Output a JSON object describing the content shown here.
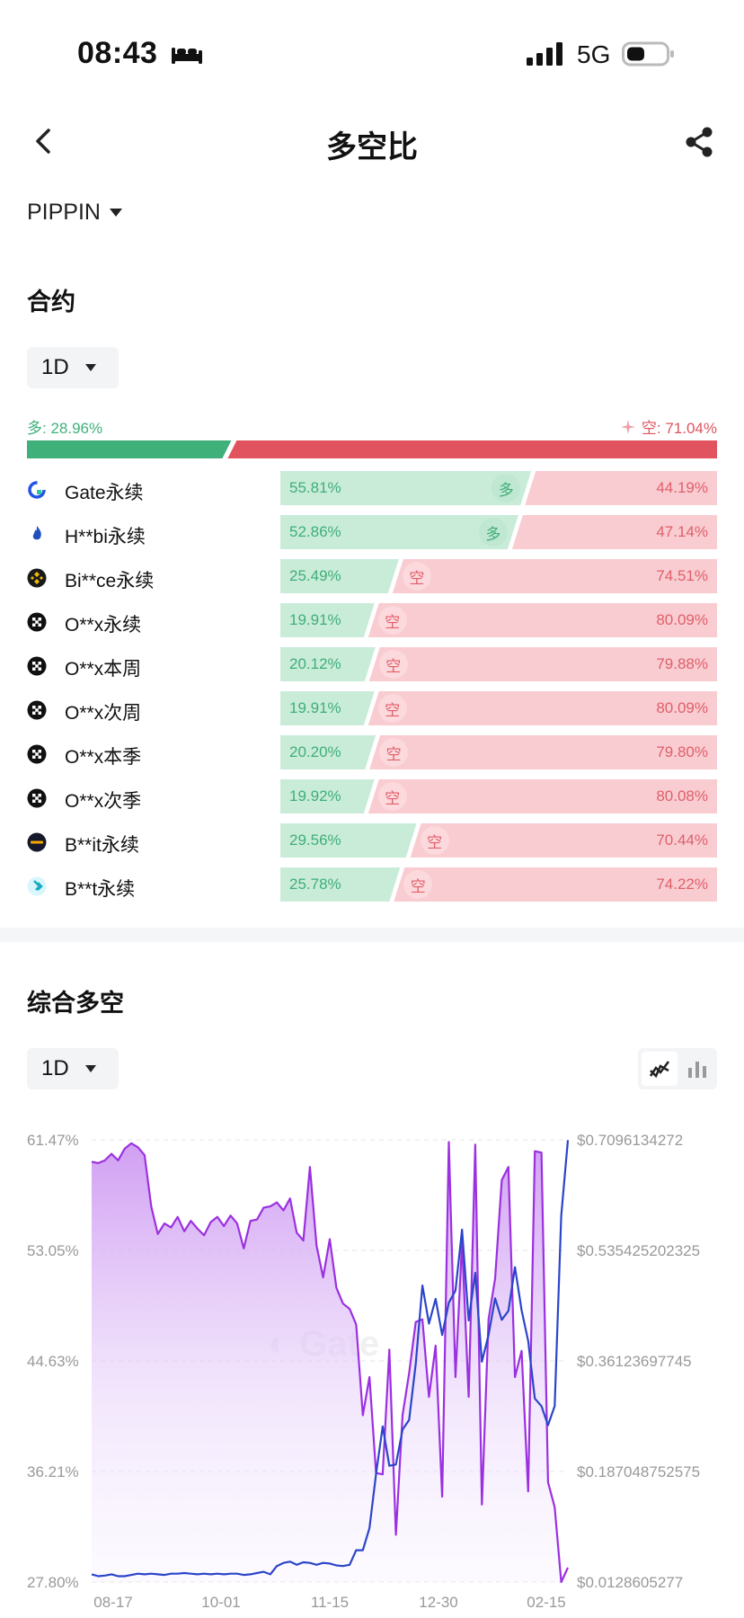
{
  "status_bar": {
    "time": "08:43",
    "network": "5G"
  },
  "header": {
    "title": "多空比"
  },
  "coin": {
    "symbol": "PIPPIN"
  },
  "contract": {
    "title": "合约",
    "period": "1D",
    "long_label": "多: 28.96%",
    "short_label": "空: 71.04%",
    "long_ratio": 0.2896,
    "exchanges": [
      {
        "name": "Gate永续",
        "icon": "gate-icon",
        "long": "55.81%",
        "short": "44.19%",
        "tag": "多"
      },
      {
        "name": "H**bi永续",
        "icon": "huobi-icon",
        "long": "52.86%",
        "short": "47.14%",
        "tag": "多"
      },
      {
        "name": "Bi**ce永续",
        "icon": "binance-icon",
        "long": "25.49%",
        "short": "74.51%",
        "tag": "空"
      },
      {
        "name": "O**x永续",
        "icon": "okx-icon",
        "long": "19.91%",
        "short": "80.09%",
        "tag": "空"
      },
      {
        "name": "O**x本周",
        "icon": "okx-icon",
        "long": "20.12%",
        "short": "79.88%",
        "tag": "空"
      },
      {
        "name": "O**x次周",
        "icon": "okx-icon",
        "long": "19.91%",
        "short": "80.09%",
        "tag": "空"
      },
      {
        "name": "O**x本季",
        "icon": "okx-icon",
        "long": "20.20%",
        "short": "79.80%",
        "tag": "空"
      },
      {
        "name": "O**x次季",
        "icon": "okx-icon",
        "long": "19.92%",
        "short": "80.08%",
        "tag": "空"
      },
      {
        "name": "B**it永续",
        "icon": "bybit-icon",
        "long": "29.56%",
        "short": "70.44%",
        "tag": "空"
      },
      {
        "name": "B**t永续",
        "icon": "bitget-icon",
        "long": "25.78%",
        "short": "74.22%",
        "tag": "空"
      }
    ]
  },
  "composite": {
    "title": "综合多空",
    "period": "1D",
    "chart_icons": [
      "line-chart-icon",
      "bar-chart-icon"
    ]
  },
  "colors": {
    "long": "#3fb07a",
    "short": "#e0535f",
    "ratio_line": "#9b30e0",
    "price_line": "#2b45c9"
  },
  "chart_data": {
    "type": "line",
    "x_ticks": [
      "08-17",
      "10-01",
      "11-15",
      "12-30",
      "02-15"
    ],
    "y_left_ticks": [
      "61.47%",
      "53.05%",
      "44.63%",
      "36.21%",
      "27.80%"
    ],
    "y_right_ticks": [
      "$0.7096134272",
      "$0.535425202325",
      "$0.36123697745",
      "$0.187048752575",
      "$0.0128605277"
    ],
    "y_left_range": [
      27.8,
      61.47
    ],
    "y_right_range": [
      0.0128605277,
      0.7096134272
    ],
    "grid": true,
    "series": [
      {
        "axis": "left",
        "area": true,
        "values": [
          59.8,
          59.7,
          59.9,
          60.4,
          59.9,
          60.8,
          61.2,
          60.9,
          60.3,
          56.4,
          54.3,
          55.1,
          54.8,
          55.6,
          54.5,
          55.3,
          54.7,
          54.2,
          55.2,
          55.6,
          54.9,
          55.7,
          55.1,
          53.2,
          55.3,
          55.4,
          56.3,
          56.4,
          56.7,
          56.1,
          57.0,
          54.4,
          53.8,
          59.4,
          53.4,
          51.0,
          53.9,
          50.2,
          49.0,
          48.6,
          47.4,
          40.5,
          43.4,
          36.1,
          36.0,
          45.5,
          31.4,
          40.5,
          43.7,
          47.6,
          47.8,
          41.9,
          45.8,
          34.3,
          61.3,
          43.4,
          53.7,
          41.9,
          61.1,
          33.7,
          47.8,
          50.9,
          58.4,
          59.4,
          43.4,
          45.4,
          34.7,
          60.6,
          60.5,
          35.4,
          33.5,
          27.8,
          28.9
        ]
      },
      {
        "axis": "right",
        "area": false,
        "values": [
          0.025,
          0.022,
          0.023,
          0.025,
          0.022,
          0.022,
          0.024,
          0.026,
          0.025,
          0.026,
          0.025,
          0.024,
          0.026,
          0.026,
          0.027,
          0.026,
          0.025,
          0.026,
          0.025,
          0.026,
          0.025,
          0.026,
          0.026,
          0.024,
          0.025,
          0.027,
          0.029,
          0.025,
          0.038,
          0.043,
          0.045,
          0.04,
          0.044,
          0.043,
          0.04,
          0.043,
          0.042,
          0.039,
          0.038,
          0.04,
          0.063,
          0.063,
          0.098,
          0.183,
          0.258,
          0.196,
          0.198,
          0.253,
          0.268,
          0.357,
          0.48,
          0.42,
          0.459,
          0.402,
          0.453,
          0.472,
          0.568,
          0.425,
          0.5,
          0.36,
          0.402,
          0.46,
          0.426,
          0.44,
          0.509,
          0.441,
          0.393,
          0.302,
          0.29,
          0.26,
          0.29,
          0.59,
          0.709
        ]
      }
    ]
  }
}
